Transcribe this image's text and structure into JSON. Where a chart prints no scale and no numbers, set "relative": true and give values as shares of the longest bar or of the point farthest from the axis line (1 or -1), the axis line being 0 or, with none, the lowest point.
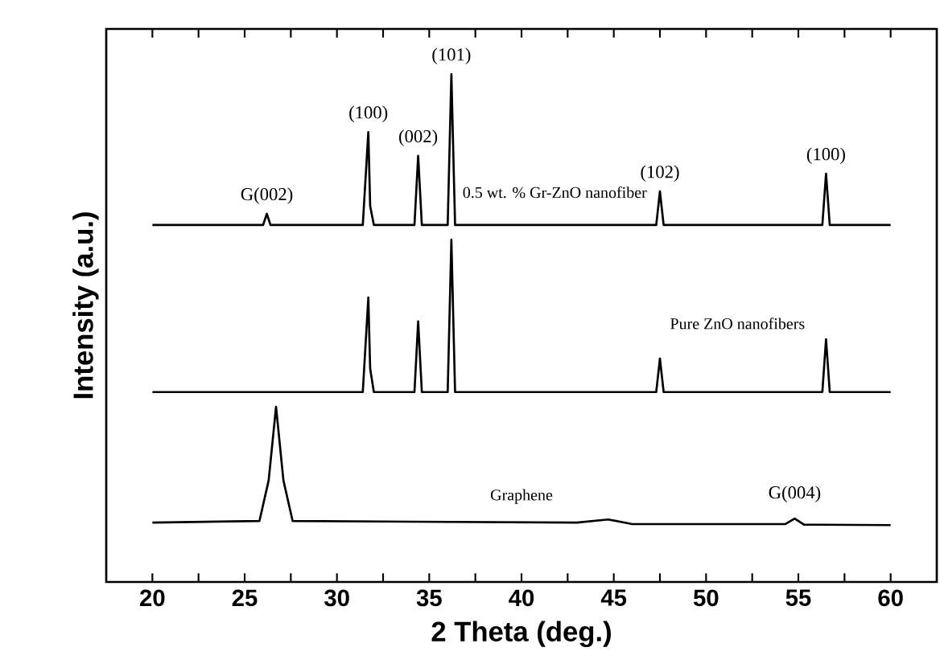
{
  "chart_data": {
    "type": "line",
    "relative": true,
    "xlabel": "2 Theta (deg.)",
    "ylabel": "Intensity (a.u.)",
    "xlim": [
      17.5,
      62.5
    ],
    "xticks": [
      20,
      {
        "value": 22.5,
        "label": null
      },
      25,
      {
        "value": 27.5,
        "label": null
      },
      30,
      {
        "value": 32.5,
        "label": null
      },
      35,
      {
        "value": 37.5,
        "label": null
      },
      40,
      {
        "value": 42.5,
        "label": null
      },
      45,
      {
        "value": 47.5,
        "label": null
      },
      50,
      {
        "value": 52.5,
        "label": null
      },
      55,
      {
        "value": 57.5,
        "label": null
      },
      60
    ],
    "tick_labels": "x",
    "marker": "none",
    "series": [
      {
        "name": "0.5 wt. % Gr-ZnO nanofiber",
        "color": "#000000",
        "x": [
          20,
          26.0,
          26.2,
          26.4,
          31.4,
          31.7,
          31.8,
          32.0,
          34.2,
          34.4,
          34.6,
          36.0,
          36.2,
          36.4,
          47.3,
          47.5,
          47.7,
          56.3,
          56.5,
          56.7,
          60
        ],
        "values": [
          0.703,
          0.703,
          0.725,
          0.703,
          0.703,
          0.886,
          0.74,
          0.703,
          0.703,
          0.839,
          0.703,
          0.703,
          1.0,
          0.703,
          0.703,
          0.769,
          0.703,
          0.703,
          0.804,
          0.703,
          0.703
        ]
      },
      {
        "name": "Pure ZnO nanofibers",
        "color": "#000000",
        "x": [
          20,
          31.4,
          31.7,
          31.8,
          32.0,
          34.2,
          34.4,
          34.6,
          36.0,
          36.2,
          36.4,
          47.3,
          47.5,
          47.7,
          56.3,
          56.5,
          56.7,
          60
        ],
        "values": [
          0.374,
          0.374,
          0.56,
          0.42,
          0.374,
          0.374,
          0.513,
          0.374,
          0.374,
          0.674,
          0.374,
          0.374,
          0.44,
          0.374,
          0.374,
          0.478,
          0.374,
          0.374
        ]
      },
      {
        "name": "Graphene",
        "color": "#000000",
        "x": [
          20,
          25.8,
          26.3,
          26.7,
          27.1,
          27.6,
          43,
          44.7,
          46,
          54.3,
          54.8,
          55.3,
          60
        ],
        "values": [
          0.117,
          0.12,
          0.2,
          0.345,
          0.2,
          0.12,
          0.117,
          0.123,
          0.114,
          0.114,
          0.125,
          0.113,
          0.112
        ]
      }
    ],
    "annotations": [
      {
        "text": "G(002)",
        "x": 26.2,
        "y": 0.725
      },
      {
        "text": "(100)",
        "x": 31.7,
        "y": 0.886
      },
      {
        "text": "(002)",
        "x": 34.4,
        "y": 0.839
      },
      {
        "text": "(101)",
        "x": 36.2,
        "y": 1.0
      },
      {
        "text": "(102)",
        "x": 47.5,
        "y": 0.769
      },
      {
        "text": "(100)",
        "x": 56.5,
        "y": 0.804
      },
      {
        "text": "G(004)",
        "x": 54.8,
        "y": 0.125
      }
    ]
  }
}
